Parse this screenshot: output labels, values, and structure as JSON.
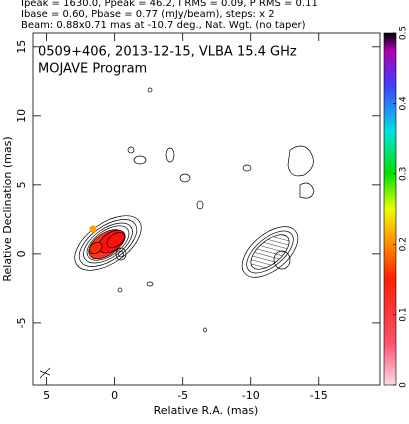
{
  "header": {
    "lines": [
      "Ipeak = 1630.0, Ppeak = 46.2, I RMS = 0.09, P RMS = 0.11",
      "Ibase = 0.60, Pbase = 0.77 (mJy/beam), steps: x 2",
      "Beam: 0.88x0.71 mas at -10.7 deg., Nat. Wgt. (no taper)"
    ]
  },
  "chart_data": {
    "type": "contour",
    "annotations": [
      "0509+406, 2013-12-15, VLBA 15.4 GHz",
      "MOJAVE Program"
    ],
    "x_label": "Relative R.A. (mas)",
    "y_label": "Relative Declination (mas)",
    "xlim": [
      6,
      -19.5
    ],
    "xticks": [
      5,
      0,
      -5,
      -10,
      -15
    ],
    "ylim": [
      -9.5,
      16
    ],
    "yticks": [
      -5,
      0,
      5,
      10,
      15
    ],
    "colorbar_lim": [
      0,
      0.5
    ],
    "colorbar_ticks": [
      0,
      0.1,
      0.2,
      0.3,
      0.4,
      0.5
    ]
  }
}
